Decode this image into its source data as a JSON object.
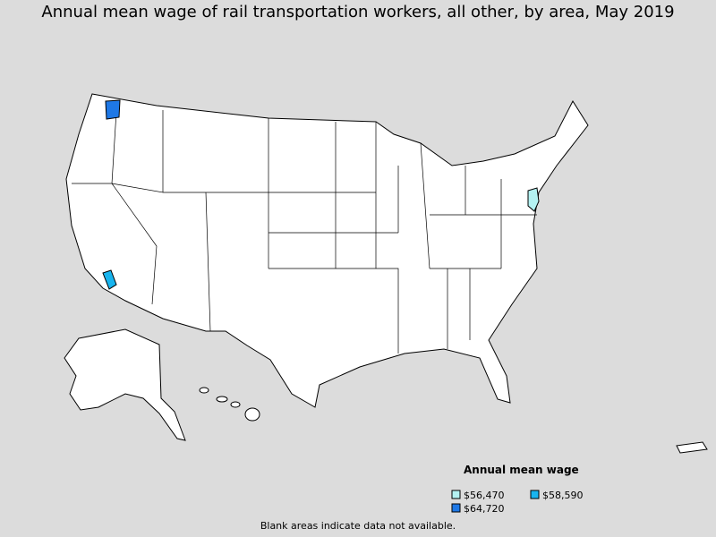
{
  "title": "Annual mean wage of rail transportation workers, all other, by area, May 2019",
  "legend": {
    "title": "Annual mean wage",
    "items": [
      {
        "label": "$56,470",
        "color": "#b4f2f2"
      },
      {
        "label": "$58,590",
        "color": "#18b4ee"
      },
      {
        "label": "$64,720",
        "color": "#1e78e6"
      }
    ]
  },
  "footnote": "Blank areas indicate data not available."
}
